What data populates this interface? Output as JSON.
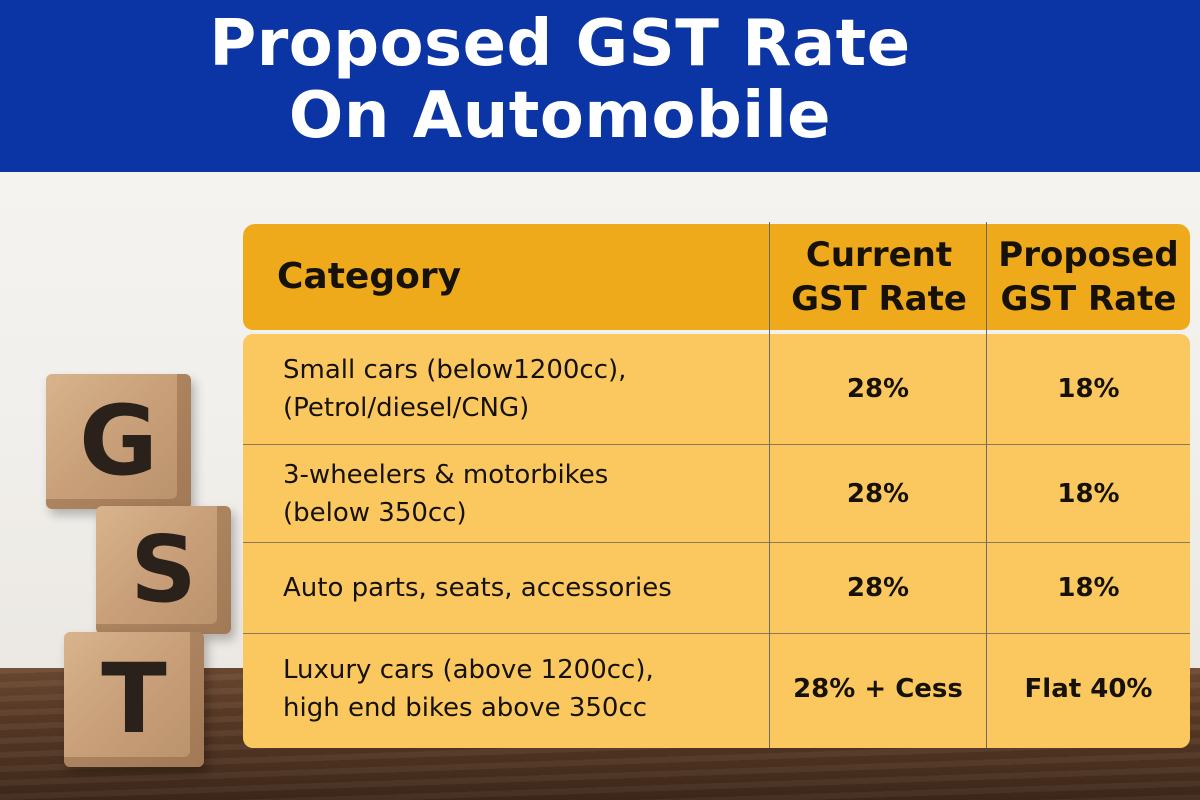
{
  "title": {
    "line1": "Proposed GST Rate",
    "line2": "On Automobile"
  },
  "cubes": [
    "G",
    "S",
    "T"
  ],
  "table": {
    "headers": {
      "category": "Category",
      "current_line1": "Current",
      "current_line2": "GST Rate",
      "proposed_line1": "Proposed",
      "proposed_line2": "GST Rate"
    },
    "rows": [
      {
        "category_line1": "Small cars (below1200cc),",
        "category_line2": "(Petrol/diesel/CNG)",
        "current": "28%",
        "proposed": "18%"
      },
      {
        "category_line1": "3-wheelers & motorbikes",
        "category_line2": "(below 350cc)",
        "current": "28%",
        "proposed": "18%"
      },
      {
        "category_line1": "Auto parts, seats, accessories",
        "category_line2": "",
        "current": "28%",
        "proposed": "18%"
      },
      {
        "category_line1": "Luxury cars (above 1200cc),",
        "category_line2": "high end bikes above 350cc",
        "current": "28% + Cess",
        "proposed": "Flat 40%"
      }
    ]
  },
  "colors": {
    "banner": "#0b34a5",
    "header_row": "#eeaa1a",
    "body_rows": "#fac85f"
  }
}
